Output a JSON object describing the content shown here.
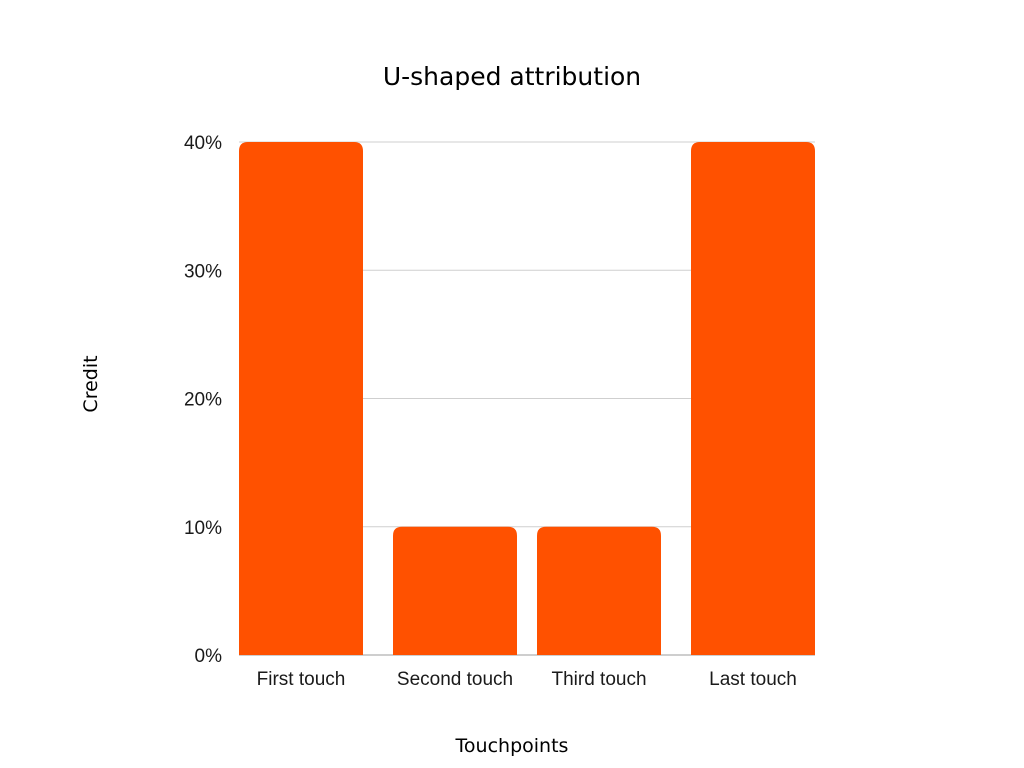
{
  "chart_data": {
    "type": "bar",
    "title": "U-shaped attribution",
    "xlabel": "Touchpoints",
    "ylabel": "Credit",
    "categories": [
      "First touch",
      "Second touch",
      "Third touch",
      "Last touch"
    ],
    "values": [
      40,
      10,
      10,
      40
    ],
    "ylim": [
      0,
      40
    ],
    "yticks": [
      0,
      10,
      20,
      30,
      40
    ],
    "ytick_labels": [
      "0%",
      "10%",
      "20%",
      "30%",
      "40%"
    ],
    "grid": true,
    "bar_color": "#FF5100"
  }
}
